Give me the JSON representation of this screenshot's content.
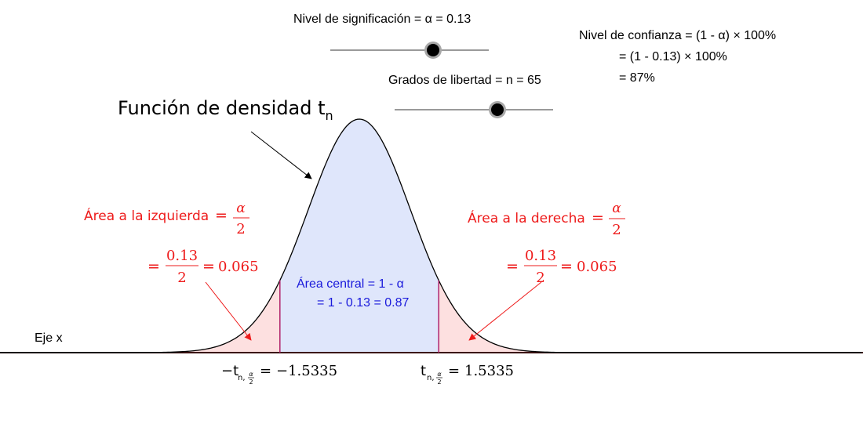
{
  "alpha_slider": {
    "label": "Nivel de significación = α  = 0.13",
    "value": 0.13,
    "min": 0,
    "max": 0.2
  },
  "df_slider": {
    "label": "Grados de libertad = n = 65",
    "value": 65,
    "min": 1,
    "max": 100
  },
  "confidence": {
    "line1": "Nivel de confianza = (1 - α) × 100%",
    "line2": "= (1 - 0.13) × 100%",
    "line3": "= 87%"
  },
  "density_title": {
    "main": "Función de densidad t",
    "sub": "n"
  },
  "left_area": {
    "label": "Área a la izquierda",
    "alpha_symbol": "α",
    "denominator": "2",
    "calc_numerator": "0.13",
    "calc_denominator": "2",
    "result": "0.065"
  },
  "right_area": {
    "label": "Área a la derecha",
    "alpha_symbol": "α",
    "denominator": "2",
    "calc_numerator": "0.13",
    "calc_denominator": "2",
    "result": "0.065"
  },
  "central_area": {
    "line1": "Área central = 1 - α",
    "line2": "= 1 - 0.13 = 0.87"
  },
  "x_axis_label": "Eje x",
  "critical_left": {
    "prefix": "−t",
    "sub": "n,",
    "frac_num": "α",
    "frac_den": "2",
    "value": "−1.5335"
  },
  "critical_right": {
    "prefix": "t",
    "sub": "n,",
    "frac_num": "α",
    "frac_den": "2",
    "value": "1.5335"
  },
  "chart_data": {
    "type": "area",
    "distribution": "Student t",
    "degrees_of_freedom": 65,
    "alpha": 0.13,
    "critical_value": 1.5335,
    "x_range": [
      -6.5,
      6.5
    ],
    "tail_area_each": 0.065,
    "central_area": 0.87
  },
  "colors": {
    "tail_fill": "#fde0e0",
    "central_fill": "#dfe6fb",
    "critical_line": "#b0226a",
    "red_text": "#ee1b1b",
    "blue_text": "#1a1adb",
    "curve": "#000000",
    "axis": "#3b0f0f"
  }
}
